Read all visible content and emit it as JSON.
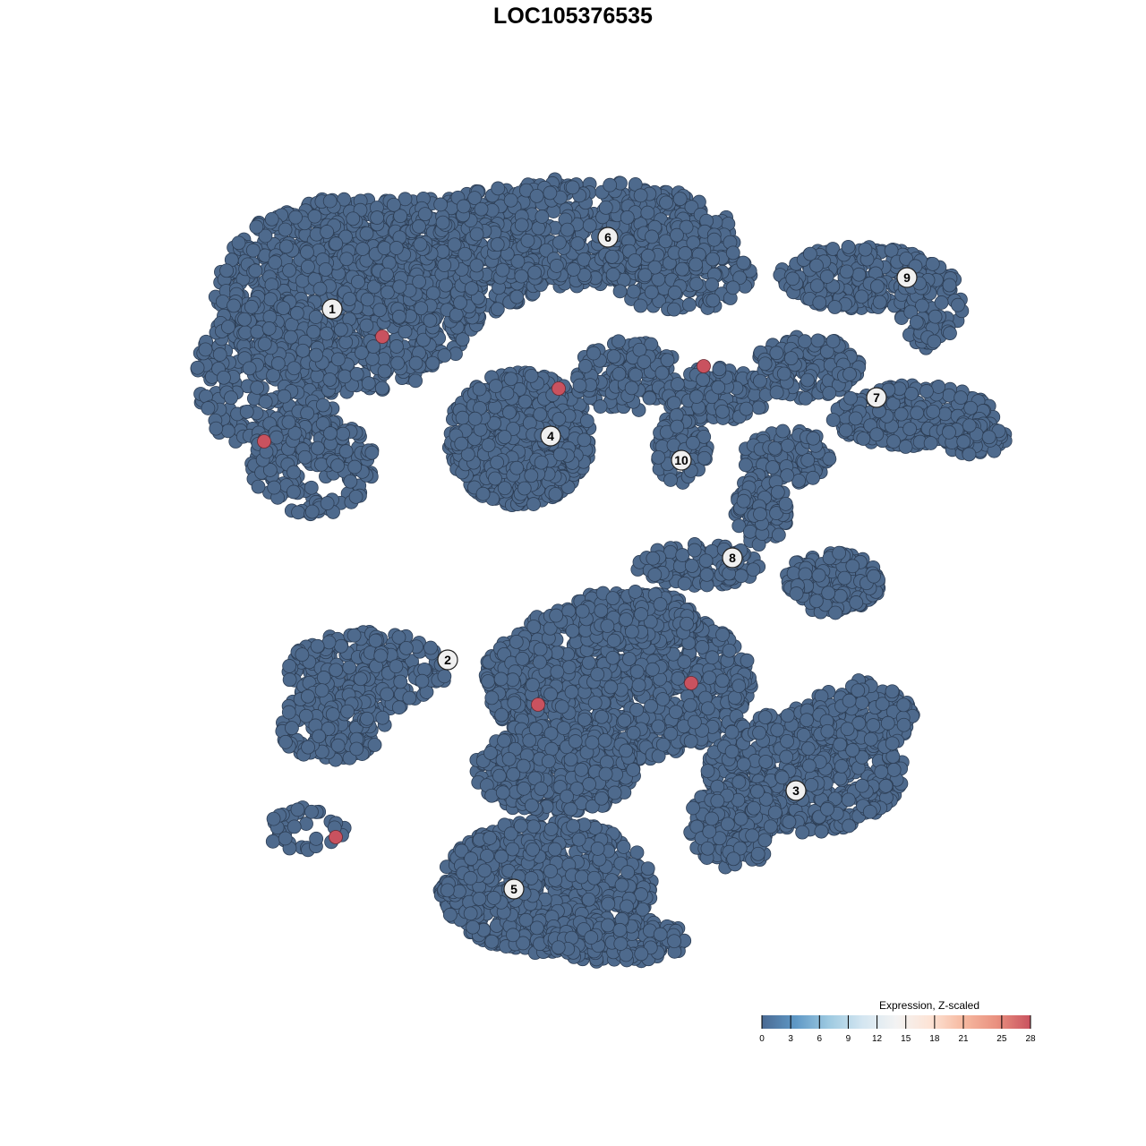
{
  "chart_data": {
    "type": "scatter",
    "title": "LOC105376535",
    "xlabel": "",
    "ylabel": "",
    "axes_visible": false,
    "grid": false,
    "point_color_low": "#4e6a8d",
    "point_color_high": "#c9525f",
    "cluster_labels": [
      {
        "label": "1",
        "x": -26.9,
        "y": 29.5
      },
      {
        "label": "6",
        "x": 3.9,
        "y": 37.5
      },
      {
        "label": "9",
        "x": 37.3,
        "y": 33.0
      },
      {
        "label": "4",
        "x": -2.5,
        "y": 15.3
      },
      {
        "label": "7",
        "x": 33.9,
        "y": 19.6
      },
      {
        "label": "10",
        "x": 12.1,
        "y": 12.6
      },
      {
        "label": "8",
        "x": 17.8,
        "y": 1.7
      },
      {
        "label": "2",
        "x": -14.0,
        "y": -9.7
      },
      {
        "label": "3",
        "x": 24.9,
        "y": -24.3
      },
      {
        "label": "5",
        "x": -6.6,
        "y": -35.3
      }
    ],
    "high_expression_points": [
      {
        "x": -21.3,
        "y": 26.4,
        "value": 28
      },
      {
        "x": -1.6,
        "y": 20.6,
        "value": 28
      },
      {
        "x": 14.6,
        "y": 23.1,
        "value": 28
      },
      {
        "x": -34.5,
        "y": 14.7,
        "value": 28
      },
      {
        "x": -3.9,
        "y": -14.7,
        "value": 28
      },
      {
        "x": 13.2,
        "y": -12.3,
        "value": 28
      },
      {
        "x": -26.5,
        "y": -29.5,
        "value": 28
      }
    ],
    "baseline_value": 0,
    "legend": {
      "title": "Expression, Z-scaled",
      "position": "bottom-right",
      "ticks": [
        "0",
        "3",
        "6",
        "9",
        "12",
        "15",
        "18",
        "21",
        "25",
        "28"
      ],
      "tick_values": [
        0,
        3,
        6,
        9,
        12,
        15,
        18,
        21,
        25,
        28
      ],
      "colors": [
        "#4a6a93",
        "#5f98c6",
        "#9ecae1",
        "#d4e6f1",
        "#f3f3f3",
        "#fde4d6",
        "#f6b9a0",
        "#e9907f",
        "#c9525f"
      ]
    }
  }
}
